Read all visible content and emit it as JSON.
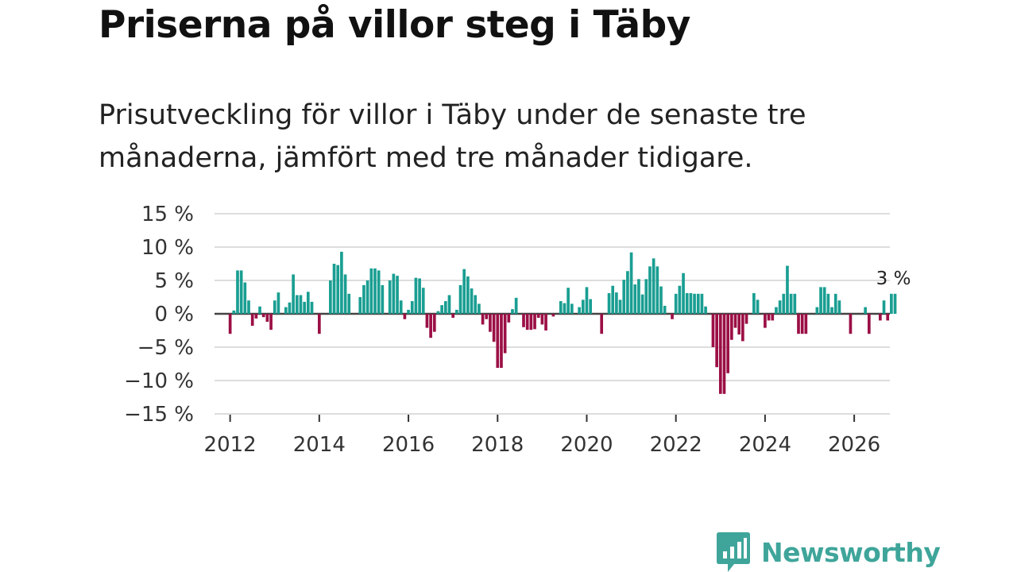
{
  "title": "Priserna på villor steg i Täby",
  "subtitle": "Prisutveckling för villor i Täby under de senaste tre månaderna, jämfört med tre månader tidigare.",
  "colors": {
    "positive": "#1a9e92",
    "negative": "#9b0f45",
    "grid": "#dddddd",
    "zero_line": "#444444"
  },
  "logo": {
    "text": "Newsworthy",
    "icon": "newsworthy-chart-icon",
    "color": "#3fa59a"
  },
  "chart_data": {
    "type": "bar",
    "title": "",
    "xlabel": "",
    "ylabel": "",
    "ylim": [
      -15,
      15
    ],
    "y_ticks": [
      15,
      10,
      5,
      0,
      -5,
      -10,
      -15
    ],
    "y_tick_labels": [
      "15 %",
      "10 %",
      "5 %",
      "0 %",
      "−5 %",
      "−10 %",
      "−15 %"
    ],
    "x_range": [
      2011.65,
      2026.8
    ],
    "x_ticks": [
      2012,
      2014,
      2016,
      2018,
      2020,
      2022,
      2024,
      2026
    ],
    "x_tick_labels": [
      "2012",
      "2014",
      "2016",
      "2018",
      "2020",
      "2022",
      "2024",
      "2026"
    ],
    "series": [
      {
        "name": "Prisutveckling (%)",
        "x_start": 2012.0,
        "step_months": 1,
        "values": [
          -3,
          0.5,
          6.5,
          6.5,
          4.7,
          2,
          -1.8,
          -0.7,
          1.1,
          -0.5,
          -1.2,
          -2.4,
          2,
          3.2,
          0,
          1,
          1.7,
          5.9,
          2.8,
          2.8,
          1.8,
          3.3,
          1.8,
          0,
          -3,
          0,
          0,
          5,
          7.5,
          7.3,
          9.3,
          5.9,
          3,
          0,
          0,
          2.5,
          4.3,
          5,
          6.8,
          6.8,
          6.5,
          4.3,
          0,
          5,
          6,
          5.7,
          2,
          -0.8,
          0.6,
          1.9,
          5.4,
          5.3,
          3.9,
          -2.1,
          -3.6,
          -2.7,
          0.4,
          1.3,
          1.9,
          2.8,
          -0.6,
          0.6,
          4.3,
          6.7,
          5.6,
          3.8,
          2.8,
          1.5,
          -1.6,
          -0.8,
          -2.7,
          -4.2,
          -8.1,
          -8.1,
          -5.9,
          -1.3,
          0.7,
          2.4,
          0,
          -2,
          -2.4,
          -2.4,
          -2.3,
          -0.6,
          -1.6,
          -2.5,
          0,
          -0.4,
          0,
          1.9,
          1.6,
          3.9,
          1.5,
          0,
          1,
          2.1,
          4,
          2.2,
          0,
          0,
          -3,
          0,
          3.1,
          4.2,
          3.2,
          2.1,
          5.1,
          6.4,
          9.2,
          4.4,
          5.2,
          2.9,
          5.2,
          7.1,
          8.3,
          7.1,
          4.1,
          1.2,
          0,
          -0.8,
          3,
          4.2,
          6.1,
          3.1,
          3.1,
          3,
          3,
          3,
          1.1,
          0,
          -5,
          -8,
          -12,
          -12,
          -8.9,
          -3.9,
          -2.1,
          -3.1,
          -4.1,
          -1.5,
          0,
          3.1,
          2.1,
          0,
          -2.1,
          -1,
          -1,
          1,
          2,
          3,
          7.2,
          3,
          3,
          -3,
          -3,
          -3,
          0,
          0,
          1,
          4,
          4,
          3,
          1,
          3,
          2,
          0,
          0,
          -3,
          0,
          0,
          0,
          1,
          -3,
          0,
          0,
          -1,
          2,
          -1,
          3,
          3
        ]
      }
    ],
    "annotations": [
      {
        "label": "3 %",
        "value": 3,
        "anchor": "last"
      }
    ]
  }
}
